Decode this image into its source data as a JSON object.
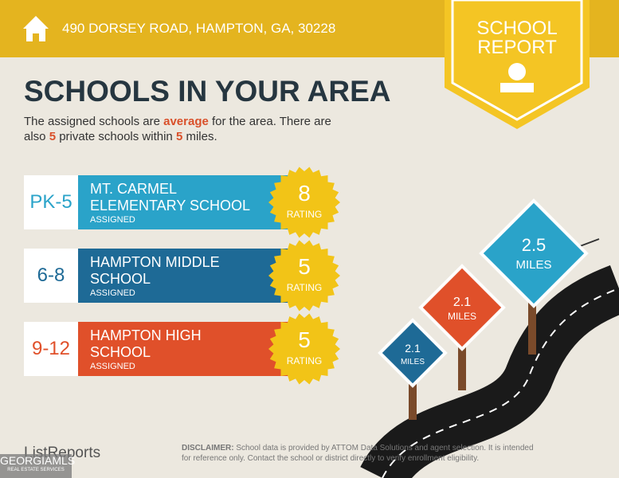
{
  "header": {
    "address": "490 DORSEY ROAD, HAMPTON, GA, 30228",
    "badge": [
      "SCHOOL",
      "REPORT"
    ]
  },
  "title": "SCHOOLS IN YOUR AREA",
  "intro": [
    "The assigned schools are ",
    "average",
    " for the area. There are also ",
    "5",
    " private schools within ",
    "5",
    " miles."
  ],
  "schools": [
    {
      "grades": "PK-5",
      "name": [
        "MT. CARMEL",
        "ELEMENTARY SCHOOL"
      ],
      "status": "ASSIGNED",
      "rating": "8",
      "rating_label": "RATING"
    },
    {
      "grades": "6-8",
      "name": [
        "HAMPTON MIDDLE",
        "SCHOOL"
      ],
      "status": "ASSIGNED",
      "rating": "5",
      "rating_label": "RATING"
    },
    {
      "grades": "9-12",
      "name": [
        "HAMPTON HIGH",
        "SCHOOL"
      ],
      "status": "ASSIGNED",
      "rating": "5",
      "rating_label": "RATING"
    }
  ],
  "signs": [
    {
      "distance": "2.5",
      "unit": "MILES"
    },
    {
      "distance": "2.1",
      "unit": "MILES"
    },
    {
      "distance": "2.1",
      "unit": "MILES"
    }
  ],
  "footer": {
    "logo": "ListReports",
    "disclaimer_label": "DISCLAIMER:",
    "disclaimer": [
      "School data is provided by ATTOM Data Solutions and agent selection. It is intended",
      "for reference only. Contact the school or district directly to verify enrollment eligibility."
    ],
    "watermark": [
      "GEORGIAMLS",
      "REAL ESTATE SERVICES"
    ]
  }
}
